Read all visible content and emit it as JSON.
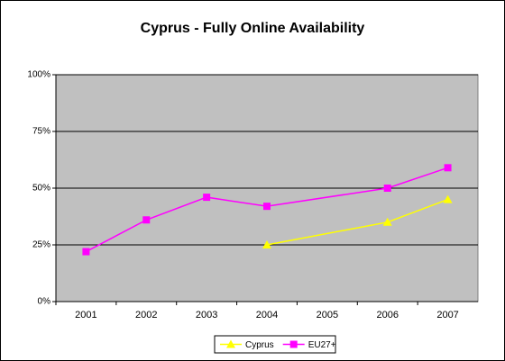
{
  "chart_data": {
    "type": "line",
    "title": "Cyprus - Fully Online Availability",
    "categories": [
      "2001",
      "2002",
      "2003",
      "2004",
      "2005",
      "2006",
      "2007"
    ],
    "series": [
      {
        "name": "Cyprus",
        "color": "#ffff00",
        "marker": "triangle",
        "values": [
          null,
          null,
          null,
          25,
          null,
          35,
          45
        ]
      },
      {
        "name": "EU27+",
        "color": "#ff00ff",
        "marker": "square",
        "values": [
          22,
          36,
          46,
          42,
          null,
          50,
          59
        ]
      }
    ],
    "ylim": [
      0,
      100
    ],
    "yticks": [
      {
        "value": 0,
        "label": "0%"
      },
      {
        "value": 25,
        "label": "25%"
      },
      {
        "value": 50,
        "label": "50%"
      },
      {
        "value": 75,
        "label": "75%"
      },
      {
        "value": 100,
        "label": "100%"
      }
    ],
    "grid": true,
    "legend": "bottom"
  }
}
